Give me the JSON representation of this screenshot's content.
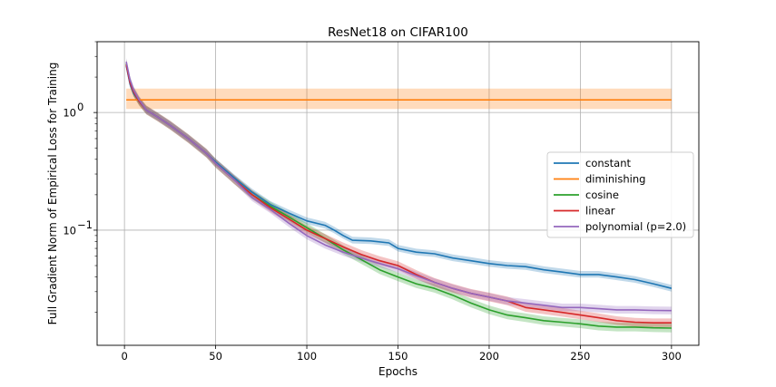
{
  "chart_data": {
    "type": "line",
    "title": "ResNet18 on CIFAR100",
    "xlabel": "Epochs",
    "ylabel": "Full Gradient Norm of Empirical Loss for Training",
    "yscale": "log",
    "xlim": [
      -15,
      315
    ],
    "ylim": [
      0.0105,
      4.0
    ],
    "xticks": [
      0,
      50,
      100,
      150,
      200,
      250,
      300
    ],
    "yticks": [
      {
        "value": 1.0,
        "base": "10",
        "exp": "0"
      },
      {
        "value": 0.1,
        "base": "10",
        "exp": "−1"
      }
    ],
    "grid": true,
    "legend_position": "center-right",
    "series": [
      {
        "name": "constant",
        "color": "#1f77b4",
        "points": [
          [
            1,
            2.5
          ],
          [
            3,
            1.75
          ],
          [
            5,
            1.45
          ],
          [
            8,
            1.25
          ],
          [
            12,
            1.05
          ],
          [
            18,
            0.92
          ],
          [
            25,
            0.78
          ],
          [
            35,
            0.6
          ],
          [
            45,
            0.45
          ],
          [
            50,
            0.38
          ],
          [
            60,
            0.28
          ],
          [
            70,
            0.21
          ],
          [
            80,
            0.165
          ],
          [
            90,
            0.14
          ],
          [
            100,
            0.12
          ],
          [
            110,
            0.11
          ],
          [
            115,
            0.1
          ],
          [
            120,
            0.09
          ],
          [
            125,
            0.082
          ],
          [
            135,
            0.081
          ],
          [
            145,
            0.078
          ],
          [
            150,
            0.07
          ],
          [
            160,
            0.065
          ],
          [
            170,
            0.063
          ],
          [
            180,
            0.058
          ],
          [
            190,
            0.055
          ],
          [
            200,
            0.052
          ],
          [
            210,
            0.05
          ],
          [
            220,
            0.049
          ],
          [
            230,
            0.046
          ],
          [
            240,
            0.044
          ],
          [
            250,
            0.042
          ],
          [
            260,
            0.042
          ],
          [
            270,
            0.04
          ],
          [
            280,
            0.038
          ],
          [
            290,
            0.035
          ],
          [
            300,
            0.032
          ]
        ],
        "band": [
          0.94,
          1.07
        ]
      },
      {
        "name": "diminishing",
        "color": "#ff7f0e",
        "points": [
          [
            1,
            1.28
          ],
          [
            300,
            1.28
          ]
        ],
        "band_values": [
          1.07,
          1.6
        ]
      },
      {
        "name": "cosine",
        "color": "#2ca02c",
        "points": [
          [
            1,
            2.6
          ],
          [
            3,
            1.85
          ],
          [
            5,
            1.5
          ],
          [
            8,
            1.25
          ],
          [
            12,
            1.05
          ],
          [
            18,
            0.92
          ],
          [
            25,
            0.78
          ],
          [
            35,
            0.6
          ],
          [
            45,
            0.45
          ],
          [
            50,
            0.37
          ],
          [
            60,
            0.27
          ],
          [
            70,
            0.2
          ],
          [
            80,
            0.16
          ],
          [
            90,
            0.13
          ],
          [
            100,
            0.105
          ],
          [
            110,
            0.085
          ],
          [
            120,
            0.068
          ],
          [
            130,
            0.056
          ],
          [
            140,
            0.046
          ],
          [
            150,
            0.04
          ],
          [
            160,
            0.035
          ],
          [
            170,
            0.032
          ],
          [
            180,
            0.028
          ],
          [
            190,
            0.024
          ],
          [
            200,
            0.021
          ],
          [
            210,
            0.019
          ],
          [
            220,
            0.018
          ],
          [
            230,
            0.017
          ],
          [
            240,
            0.0165
          ],
          [
            250,
            0.016
          ],
          [
            260,
            0.0153
          ],
          [
            270,
            0.015
          ],
          [
            280,
            0.015
          ],
          [
            290,
            0.0148
          ],
          [
            300,
            0.0147
          ]
        ],
        "band": [
          0.92,
          1.09
        ]
      },
      {
        "name": "linear",
        "color": "#d62728",
        "points": [
          [
            1,
            2.55
          ],
          [
            3,
            1.8
          ],
          [
            5,
            1.5
          ],
          [
            8,
            1.25
          ],
          [
            12,
            1.05
          ],
          [
            18,
            0.92
          ],
          [
            25,
            0.78
          ],
          [
            35,
            0.6
          ],
          [
            45,
            0.45
          ],
          [
            50,
            0.37
          ],
          [
            60,
            0.27
          ],
          [
            70,
            0.2
          ],
          [
            80,
            0.155
          ],
          [
            90,
            0.125
          ],
          [
            100,
            0.1
          ],
          [
            110,
            0.085
          ],
          [
            120,
            0.072
          ],
          [
            130,
            0.062
          ],
          [
            140,
            0.055
          ],
          [
            150,
            0.05
          ],
          [
            160,
            0.042
          ],
          [
            170,
            0.036
          ],
          [
            180,
            0.032
          ],
          [
            190,
            0.029
          ],
          [
            200,
            0.027
          ],
          [
            210,
            0.025
          ],
          [
            220,
            0.022
          ],
          [
            230,
            0.021
          ],
          [
            240,
            0.02
          ],
          [
            250,
            0.019
          ],
          [
            260,
            0.018
          ],
          [
            270,
            0.017
          ],
          [
            280,
            0.0165
          ],
          [
            290,
            0.0163
          ],
          [
            300,
            0.0163
          ]
        ],
        "band": [
          0.92,
          1.09
        ]
      },
      {
        "name": "polynomial (p=2.0)",
        "color": "#9467bd",
        "points": [
          [
            1,
            2.7
          ],
          [
            3,
            1.9
          ],
          [
            5,
            1.55
          ],
          [
            8,
            1.28
          ],
          [
            12,
            1.05
          ],
          [
            18,
            0.92
          ],
          [
            25,
            0.78
          ],
          [
            35,
            0.6
          ],
          [
            45,
            0.45
          ],
          [
            50,
            0.37
          ],
          [
            60,
            0.27
          ],
          [
            70,
            0.19
          ],
          [
            80,
            0.15
          ],
          [
            90,
            0.115
          ],
          [
            100,
            0.09
          ],
          [
            110,
            0.075
          ],
          [
            120,
            0.065
          ],
          [
            130,
            0.058
          ],
          [
            140,
            0.052
          ],
          [
            150,
            0.047
          ],
          [
            160,
            0.041
          ],
          [
            170,
            0.036
          ],
          [
            180,
            0.032
          ],
          [
            190,
            0.029
          ],
          [
            200,
            0.027
          ],
          [
            210,
            0.025
          ],
          [
            220,
            0.024
          ],
          [
            230,
            0.023
          ],
          [
            240,
            0.022
          ],
          [
            250,
            0.022
          ],
          [
            260,
            0.0215
          ],
          [
            270,
            0.021
          ],
          [
            280,
            0.021
          ],
          [
            290,
            0.0208
          ],
          [
            300,
            0.0207
          ]
        ],
        "band": [
          0.93,
          1.08
        ]
      }
    ]
  }
}
